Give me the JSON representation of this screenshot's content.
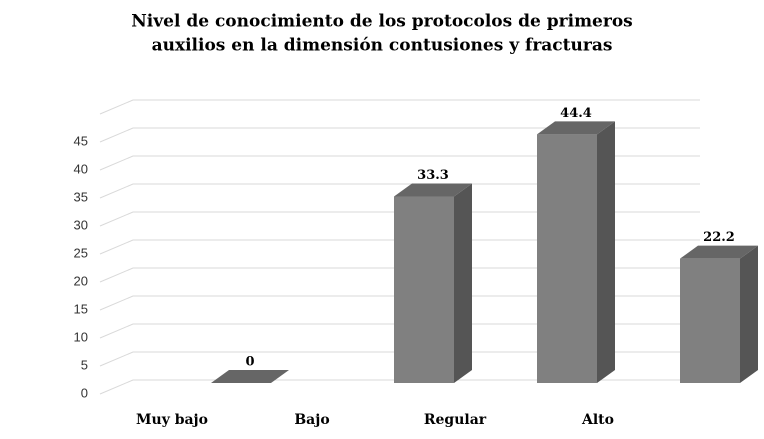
{
  "chart_data": {
    "type": "bar3d",
    "title": [
      "Nivel de conocimiento de los protocolos de primeros",
      "auxilios en la dimensión contusiones y fracturas"
    ],
    "categories": [
      "Muy bajo",
      "Bajo",
      "Regular",
      "Alto"
    ],
    "values": [
      0,
      33.3,
      44.4,
      22.2
    ],
    "color": "#808080",
    "ylim": [
      0,
      50
    ],
    "yticks": [
      0,
      5,
      10,
      15,
      20,
      25,
      30,
      35,
      40,
      45
    ],
    "grid": true
  }
}
